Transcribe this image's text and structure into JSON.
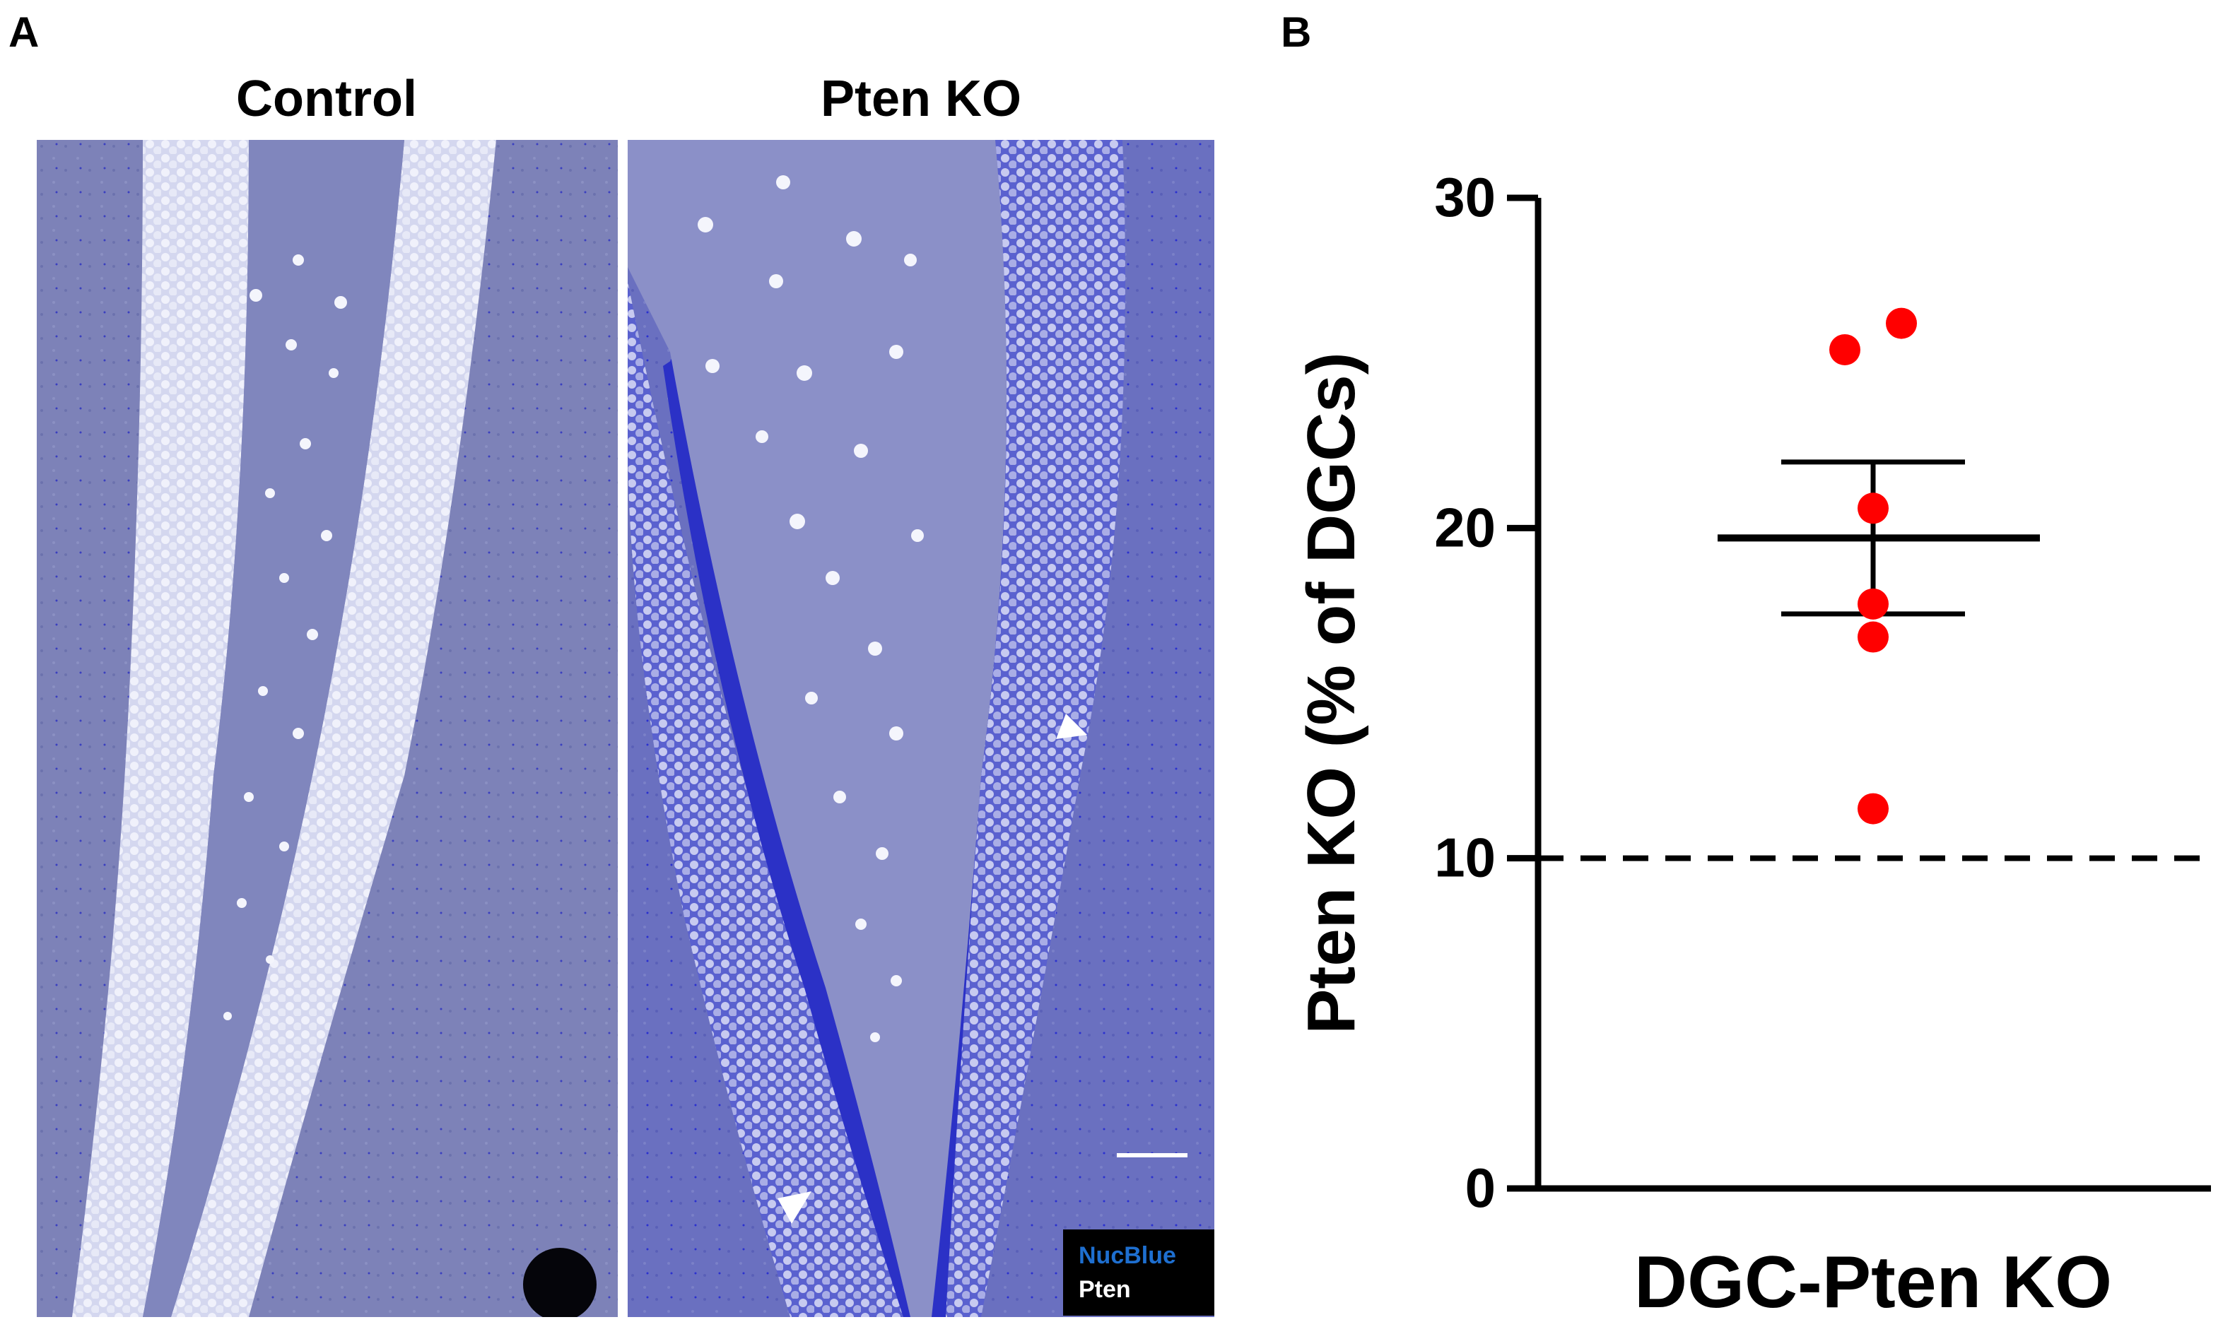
{
  "panels": {
    "a_label": "A",
    "b_label": "B"
  },
  "micrographs": {
    "left_title": "Control",
    "right_title": "Pten KO",
    "legend": {
      "nucblue_label": "NucBlue",
      "nucblue_color": "#1e6fd0",
      "pten_label": "Pten",
      "pten_color": "#ffffff"
    },
    "stain_colors": {
      "background": "#7a7fb5",
      "nuclei": "#2b2fc4",
      "pten_cells": "#e9ebf7"
    }
  },
  "chart_data": {
    "type": "scatter",
    "xlabel": "DGC-Pten KO",
    "ylabel": "Pten KO (% of DGCs)",
    "ylim": [
      0,
      30
    ],
    "yticks": [
      0,
      10,
      20,
      30
    ],
    "points": [
      26.2,
      25.4,
      20.6,
      17.7,
      16.7,
      11.5
    ],
    "mean": 19.7,
    "sem_upper": 22.0,
    "sem_lower": 17.4,
    "reference_line": 10,
    "point_color": "#ff0000",
    "line_color": "#000000"
  }
}
